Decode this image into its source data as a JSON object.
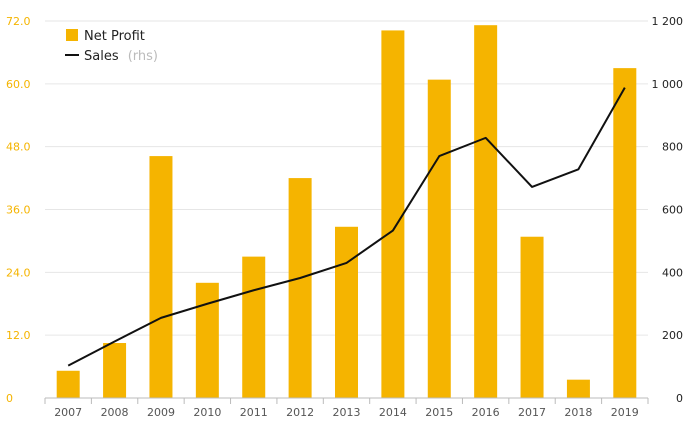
{
  "chart_data": {
    "type": "bar",
    "categories": [
      "2007",
      "2008",
      "2009",
      "2010",
      "2011",
      "2012",
      "2013",
      "2014",
      "2015",
      "2016",
      "2017",
      "2018",
      "2019"
    ],
    "series": [
      {
        "name": "Net Profit",
        "type": "bar",
        "axis": "left",
        "color": "#f5b400",
        "values": [
          5.2,
          10.5,
          46.2,
          22.0,
          27.0,
          42.0,
          32.7,
          70.2,
          60.8,
          71.2,
          30.8,
          3.5,
          63.0
        ]
      },
      {
        "name": "Sales",
        "note": "(rhs)",
        "type": "line",
        "axis": "right",
        "color": "#111111",
        "values": [
          103,
          180,
          255,
          300,
          343,
          382,
          430,
          533,
          770,
          828,
          672,
          728,
          988
        ]
      }
    ],
    "y_left": {
      "ylim": [
        0,
        72
      ],
      "ticks": [
        "0",
        "12.0",
        "24.0",
        "36.0",
        "48.0",
        "60.0",
        "72.0"
      ],
      "color": "#f5b400"
    },
    "y_right": {
      "ylim": [
        0,
        1200
      ],
      "ticks": [
        "0",
        "200",
        "400",
        "600",
        "800",
        "1 000",
        "1 200"
      ]
    },
    "grid": true,
    "legend": "top-left"
  }
}
